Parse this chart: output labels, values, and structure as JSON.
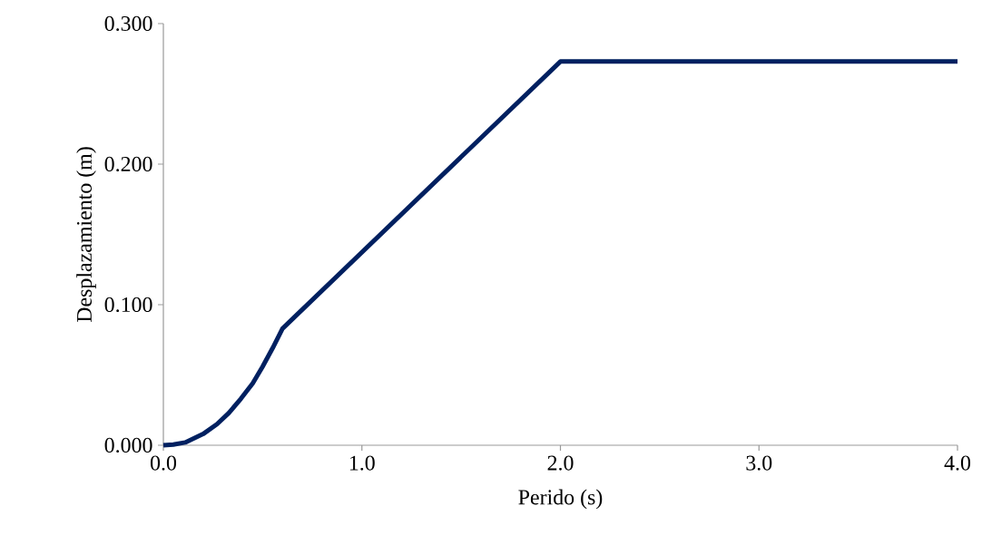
{
  "chart_data": {
    "type": "line",
    "xlabel": "Perido (s)",
    "ylabel": "Desplazamiento (m)",
    "x": [
      0,
      0.05,
      0.11,
      0.2,
      0.27,
      0.33,
      0.39,
      0.45,
      0.5,
      0.55,
      0.6,
      2.0,
      4.0
    ],
    "values": [
      0,
      0.0005,
      0.002,
      0.008,
      0.015,
      0.023,
      0.033,
      0.044,
      0.056,
      0.069,
      0.083,
      0.273,
      0.273
    ],
    "color": "#002060",
    "xlim": [
      0,
      4
    ],
    "xticks": [
      {
        "value": 0,
        "label": "0.0"
      },
      {
        "value": 1,
        "label": "1.0"
      },
      {
        "value": 2,
        "label": "2.0"
      },
      {
        "value": 3,
        "label": "3.0"
      },
      {
        "value": 4,
        "label": "4.0"
      }
    ],
    "ylim": [
      0,
      0.3
    ],
    "yticks": [
      {
        "value": 0,
        "label": "0.000"
      },
      {
        "value": 0.1,
        "label": "0.100"
      },
      {
        "value": 0.2,
        "label": "0.200"
      },
      {
        "value": 0.3,
        "label": "0.300"
      }
    ],
    "grid": false,
    "marker": "none",
    "line_style": "solid"
  }
}
